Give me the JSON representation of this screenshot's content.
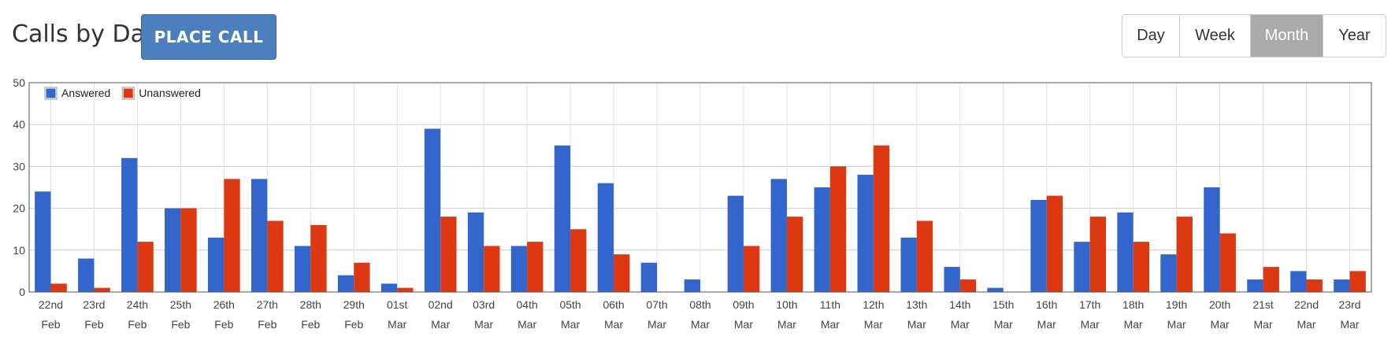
{
  "header": {
    "title": "Calls by Day",
    "place_call_label": "PLACE CALL"
  },
  "range_buttons": [
    {
      "label": "Day",
      "active": false
    },
    {
      "label": "Week",
      "active": false
    },
    {
      "label": "Month",
      "active": true
    },
    {
      "label": "Year",
      "active": false
    }
  ],
  "colors": {
    "answered": "#3366cc",
    "unanswered": "#dc3912",
    "button": "#4b7fbd",
    "active_range": "#aaaaaa"
  },
  "chart_data": {
    "type": "bar",
    "ylim": [
      0,
      50
    ],
    "yticks": [
      0,
      10,
      20,
      30,
      40,
      50
    ],
    "grid": true,
    "legend_position": "top-left",
    "categories": [
      [
        "22nd",
        "Feb"
      ],
      [
        "23rd",
        "Feb"
      ],
      [
        "24th",
        "Feb"
      ],
      [
        "25th",
        "Feb"
      ],
      [
        "26th",
        "Feb"
      ],
      [
        "27th",
        "Feb"
      ],
      [
        "28th",
        "Feb"
      ],
      [
        "29th",
        "Feb"
      ],
      [
        "01st",
        "Mar"
      ],
      [
        "02nd",
        "Mar"
      ],
      [
        "03rd",
        "Mar"
      ],
      [
        "04th",
        "Mar"
      ],
      [
        "05th",
        "Mar"
      ],
      [
        "06th",
        "Mar"
      ],
      [
        "07th",
        "Mar"
      ],
      [
        "08th",
        "Mar"
      ],
      [
        "09th",
        "Mar"
      ],
      [
        "10th",
        "Mar"
      ],
      [
        "11th",
        "Mar"
      ],
      [
        "12th",
        "Mar"
      ],
      [
        "13th",
        "Mar"
      ],
      [
        "14th",
        "Mar"
      ],
      [
        "15th",
        "Mar"
      ],
      [
        "16th",
        "Mar"
      ],
      [
        "17th",
        "Mar"
      ],
      [
        "18th",
        "Mar"
      ],
      [
        "19th",
        "Mar"
      ],
      [
        "20th",
        "Mar"
      ],
      [
        "21st",
        "Mar"
      ],
      [
        "22nd",
        "Mar"
      ],
      [
        "23rd",
        "Mar"
      ]
    ],
    "series": [
      {
        "name": "Answered",
        "color": "#3366cc",
        "values": [
          24,
          8,
          32,
          20,
          13,
          27,
          11,
          4,
          2,
          39,
          19,
          11,
          35,
          26,
          7,
          3,
          23,
          27,
          25,
          28,
          13,
          6,
          1,
          22,
          12,
          19,
          9,
          25,
          3,
          5,
          3
        ]
      },
      {
        "name": "Unanswered",
        "color": "#dc3912",
        "values": [
          2,
          1,
          12,
          20,
          27,
          17,
          16,
          7,
          1,
          18,
          11,
          12,
          15,
          9,
          0,
          0,
          11,
          18,
          30,
          35,
          17,
          3,
          0,
          23,
          18,
          12,
          18,
          14,
          6,
          3,
          5
        ]
      }
    ]
  }
}
